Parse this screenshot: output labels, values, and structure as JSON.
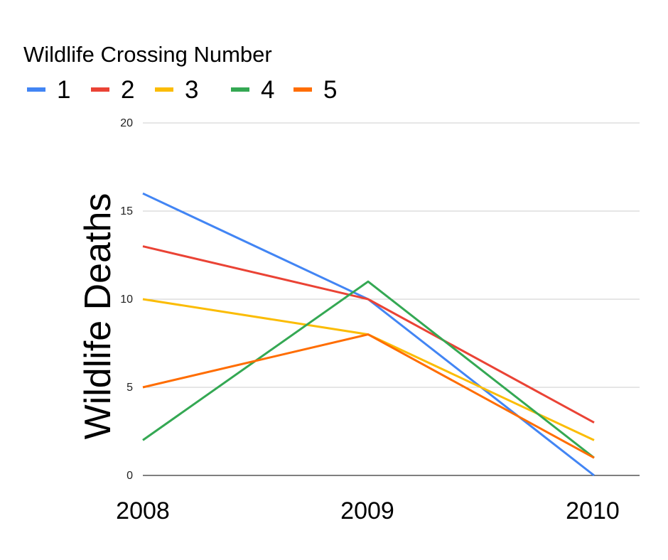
{
  "chart_data": {
    "type": "line",
    "legend_title": "Wildlife Crossing Number",
    "legend_position": "top-left",
    "xlabel": "",
    "ylabel": "Wildlife Deaths",
    "x": [
      "2008",
      "2009",
      "2010"
    ],
    "ylim": [
      0,
      20
    ],
    "yticks": [
      "0",
      "5",
      "10",
      "15",
      "20"
    ],
    "grid": true,
    "series": [
      {
        "name": "1",
        "color": "#4285F4",
        "values": [
          16,
          10,
          0
        ]
      },
      {
        "name": "2",
        "color": "#EA4335",
        "values": [
          13,
          10,
          3
        ]
      },
      {
        "name": "3",
        "color": "#FBBC04",
        "values": [
          10,
          8,
          2
        ]
      },
      {
        "name": "4",
        "color": "#34A853",
        "values": [
          2,
          11,
          1
        ]
      },
      {
        "name": "5",
        "color": "#FF6D01",
        "values": [
          5,
          8,
          1
        ]
      }
    ]
  }
}
